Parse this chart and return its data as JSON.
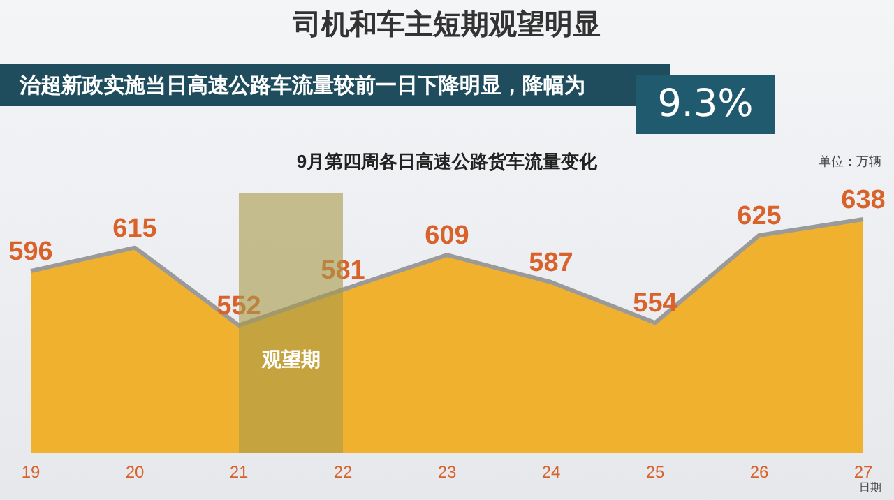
{
  "chart_data": {
    "type": "area",
    "title": "司机和车主短期观望明显",
    "subtitle": "治超新政实施当日高速公路车流量较前一日下降明显，降幅为",
    "annotations": [
      "9.3%",
      "9月第四周各日高速公路货车流量变化"
    ],
    "xlabel": "日期",
    "ylabel": "单位：万辆",
    "categories": [
      "19",
      "20",
      "21",
      "22",
      "23",
      "24",
      "25",
      "26",
      "27"
    ],
    "series": [
      {
        "color": "#f0b22e",
        "values": [
          596,
          615,
          552,
          581,
          609,
          587,
          554,
          625,
          638
        ]
      }
    ],
    "tick_labels": "x",
    "data_labels": true,
    "bands": [
      {
        "axis": "x",
        "from": "21",
        "to": "22",
        "label": "观望期",
        "color": "#a99a4a"
      }
    ]
  }
}
